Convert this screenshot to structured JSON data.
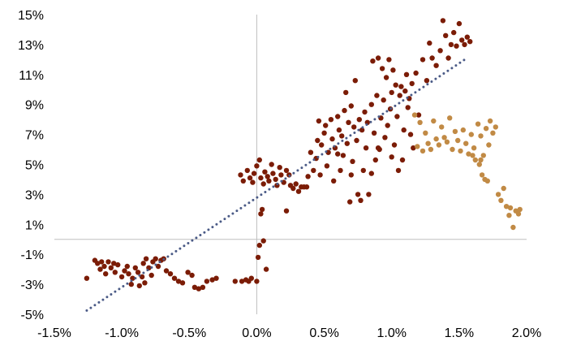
{
  "chart_data": {
    "type": "scatter",
    "title": "",
    "xlabel": "",
    "ylabel": "",
    "xlim": [
      -1.5,
      2.0
    ],
    "ylim": [
      -5,
      15
    ],
    "grid": false,
    "x_ticks": [
      -1.5,
      -1.0,
      -0.5,
      0.0,
      0.5,
      1.0,
      1.5,
      2.0
    ],
    "x_tick_labels": [
      "-1.5%",
      "-1.0%",
      "-0.5%",
      "0.0%",
      "0.5%",
      "1.0%",
      "1.5%",
      "2.0%"
    ],
    "y_ticks": [
      15,
      13,
      11,
      9,
      7,
      5,
      3,
      1,
      -1,
      -3,
      -5
    ],
    "y_tick_labels": [
      "15%",
      "13%",
      "11%",
      "9%",
      "7%",
      "5%",
      "3%",
      "1%",
      "-1%",
      "-3%",
      "-5%"
    ],
    "colors": {
      "primary": "#7b1c06",
      "highlight": "#c18a45",
      "trend": "#4a5a86",
      "axis": "#bfbfbf"
    },
    "series": [
      {
        "color": "#7b1c06",
        "points": [
          [
            -1.26,
            -2.6
          ],
          [
            -1.2,
            -1.4
          ],
          [
            -1.18,
            -1.6
          ],
          [
            -1.16,
            -2.0
          ],
          [
            -1.15,
            -1.5
          ],
          [
            -1.13,
            -1.8
          ],
          [
            -1.12,
            -2.3
          ],
          [
            -1.1,
            -1.5
          ],
          [
            -1.08,
            -1.9
          ],
          [
            -1.06,
            -1.6
          ],
          [
            -1.05,
            -2.2
          ],
          [
            -1.03,
            -1.7
          ],
          [
            -1.0,
            -2.5
          ],
          [
            -0.98,
            -2.1
          ],
          [
            -0.96,
            -1.8
          ],
          [
            -0.95,
            -2.3
          ],
          [
            -0.93,
            -3.0
          ],
          [
            -0.92,
            -2.6
          ],
          [
            -0.9,
            -1.9
          ],
          [
            -0.88,
            -2.2
          ],
          [
            -0.87,
            -3.1
          ],
          [
            -0.85,
            -2.5
          ],
          [
            -0.84,
            -1.6
          ],
          [
            -0.83,
            -2.9
          ],
          [
            -0.82,
            -1.3
          ],
          [
            -0.8,
            -1.9
          ],
          [
            -0.78,
            -2.4
          ],
          [
            -0.77,
            -1.5
          ],
          [
            -0.75,
            -1.3
          ],
          [
            -0.73,
            -1.8
          ],
          [
            -0.71,
            -1.4
          ],
          [
            -0.69,
            -1.3
          ],
          [
            -0.67,
            -2.1
          ],
          [
            -0.64,
            -2.3
          ],
          [
            -0.61,
            -2.6
          ],
          [
            -0.58,
            -2.8
          ],
          [
            -0.55,
            -2.9
          ],
          [
            -0.51,
            -2.2
          ],
          [
            -0.48,
            -2.4
          ],
          [
            -0.46,
            -3.2
          ],
          [
            -0.43,
            -3.3
          ],
          [
            -0.4,
            -3.2
          ],
          [
            -0.37,
            -2.8
          ],
          [
            -0.33,
            -2.7
          ],
          [
            -0.3,
            -2.6
          ],
          [
            -0.16,
            -2.8
          ],
          [
            -0.11,
            -2.8
          ],
          [
            -0.08,
            -2.7
          ],
          [
            -0.06,
            -2.8
          ],
          [
            -0.04,
            -2.6
          ],
          [
            0.0,
            -2.8
          ],
          [
            0.01,
            -1.2
          ],
          [
            0.02,
            -0.4
          ],
          [
            0.03,
            1.7
          ],
          [
            0.04,
            2.0
          ],
          [
            0.05,
            -0.1
          ],
          [
            0.07,
            -2.0
          ],
          [
            -0.12,
            4.3
          ],
          [
            -0.1,
            3.9
          ],
          [
            -0.07,
            4.6
          ],
          [
            -0.05,
            4.1
          ],
          [
            -0.03,
            3.8
          ],
          [
            -0.02,
            4.4
          ],
          [
            0.0,
            4.9
          ],
          [
            0.02,
            5.3
          ],
          [
            0.03,
            4.1
          ],
          [
            0.05,
            3.7
          ],
          [
            0.06,
            4.5
          ],
          [
            0.08,
            4.2
          ],
          [
            0.09,
            3.9
          ],
          [
            0.11,
            5.0
          ],
          [
            0.12,
            4.4
          ],
          [
            0.14,
            4.0
          ],
          [
            0.15,
            3.6
          ],
          [
            0.17,
            4.8
          ],
          [
            0.18,
            4.3
          ],
          [
            0.2,
            3.8
          ],
          [
            0.22,
            4.6
          ],
          [
            0.24,
            4.3
          ],
          [
            0.25,
            3.6
          ],
          [
            0.27,
            3.4
          ],
          [
            0.29,
            3.7
          ],
          [
            0.31,
            3.2
          ],
          [
            0.33,
            3.5
          ],
          [
            0.35,
            3.5
          ],
          [
            0.37,
            3.5
          ],
          [
            0.22,
            1.9
          ],
          [
            0.38,
            4.2
          ],
          [
            0.4,
            5.8
          ],
          [
            0.42,
            4.6
          ],
          [
            0.44,
            5.4
          ],
          [
            0.45,
            6.6
          ],
          [
            0.46,
            7.9
          ],
          [
            0.47,
            4.3
          ],
          [
            0.48,
            6.3
          ],
          [
            0.5,
            7.1
          ],
          [
            0.51,
            7.6
          ],
          [
            0.52,
            4.9
          ],
          [
            0.53,
            5.8
          ],
          [
            0.55,
            8.0
          ],
          [
            0.56,
            6.7
          ],
          [
            0.57,
            3.9
          ],
          [
            0.58,
            6.1
          ],
          [
            0.6,
            8.2
          ],
          [
            0.61,
            7.3
          ],
          [
            0.62,
            4.6
          ],
          [
            0.63,
            6.9
          ],
          [
            0.64,
            5.6
          ],
          [
            0.65,
            8.6
          ],
          [
            0.66,
            9.8
          ],
          [
            0.67,
            6.4
          ],
          [
            0.68,
            7.8
          ],
          [
            0.69,
            2.5
          ],
          [
            0.7,
            8.9
          ],
          [
            0.71,
            5.2
          ],
          [
            0.72,
            7.5
          ],
          [
            0.73,
            10.6
          ],
          [
            0.74,
            6.6
          ],
          [
            0.75,
            3.0
          ],
          [
            0.76,
            8.0
          ],
          [
            0.77,
            2.6
          ],
          [
            0.78,
            7.3
          ],
          [
            0.79,
            4.6
          ],
          [
            0.8,
            8.5
          ],
          [
            0.81,
            6.1
          ],
          [
            0.82,
            7.8
          ],
          [
            0.83,
            3.0
          ],
          [
            0.85,
            9.0
          ],
          [
            0.86,
            11.9
          ],
          [
            0.87,
            7.1
          ],
          [
            0.88,
            5.3
          ],
          [
            0.89,
            9.6
          ],
          [
            0.9,
            12.1
          ],
          [
            0.91,
            6.0
          ],
          [
            0.92,
            8.1
          ],
          [
            0.93,
            11.4
          ],
          [
            0.94,
            9.3
          ],
          [
            0.95,
            6.8
          ],
          [
            0.96,
            10.8
          ],
          [
            0.97,
            7.6
          ],
          [
            0.98,
            12.0
          ],
          [
            0.99,
            8.7
          ],
          [
            1.0,
            9.8
          ],
          [
            1.01,
            11.3
          ],
          [
            1.02,
            6.3
          ],
          [
            1.03,
            10.3
          ],
          [
            1.04,
            8.2
          ],
          [
            1.05,
            4.6
          ],
          [
            1.06,
            9.6
          ],
          [
            1.07,
            10.2
          ],
          [
            1.08,
            5.3
          ],
          [
            1.09,
            7.3
          ],
          [
            1.1,
            9.9
          ],
          [
            1.11,
            11.0
          ],
          [
            1.12,
            8.8
          ],
          [
            1.13,
            9.4
          ],
          [
            1.14,
            7.0
          ],
          [
            1.15,
            10.4
          ],
          [
            1.16,
            6.1
          ],
          [
            1.18,
            11.1
          ],
          [
            1.2,
            8.3
          ],
          [
            1.23,
            12.0
          ],
          [
            1.26,
            10.6
          ],
          [
            1.28,
            13.1
          ],
          [
            1.3,
            12.1
          ],
          [
            1.33,
            11.6
          ],
          [
            1.36,
            12.6
          ],
          [
            1.38,
            14.6
          ],
          [
            1.4,
            13.6
          ],
          [
            1.42,
            12.1
          ],
          [
            1.44,
            13.0
          ],
          [
            1.46,
            13.8
          ],
          [
            1.48,
            12.9
          ],
          [
            1.5,
            14.4
          ],
          [
            1.52,
            13.3
          ],
          [
            1.54,
            13.0
          ],
          [
            1.56,
            13.5
          ],
          [
            1.58,
            13.2
          ],
          [
            0.7,
            4.3
          ],
          [
            0.9,
            6.1
          ],
          [
            1.0,
            5.5
          ],
          [
            0.6,
            5.7
          ],
          [
            0.85,
            4.4
          ]
        ]
      },
      {
        "color": "#c18a45",
        "points": [
          [
            1.17,
            8.3
          ],
          [
            1.19,
            6.2
          ],
          [
            1.21,
            7.8
          ],
          [
            1.23,
            5.9
          ],
          [
            1.25,
            7.1
          ],
          [
            1.27,
            6.4
          ],
          [
            1.29,
            6.0
          ],
          [
            1.31,
            7.9
          ],
          [
            1.33,
            6.7
          ],
          [
            1.35,
            6.3
          ],
          [
            1.37,
            7.5
          ],
          [
            1.39,
            6.8
          ],
          [
            1.41,
            6.5
          ],
          [
            1.43,
            8.1
          ],
          [
            1.45,
            6.0
          ],
          [
            1.47,
            7.2
          ],
          [
            1.49,
            6.6
          ],
          [
            1.51,
            5.9
          ],
          [
            1.53,
            7.3
          ],
          [
            1.55,
            6.4
          ],
          [
            1.57,
            5.7
          ],
          [
            1.59,
            7.0
          ],
          [
            1.61,
            6.1
          ],
          [
            1.62,
            5.3
          ],
          [
            1.64,
            7.7
          ],
          [
            1.65,
            5.0
          ],
          [
            1.66,
            6.9
          ],
          [
            1.67,
            4.3
          ],
          [
            1.68,
            5.6
          ],
          [
            1.69,
            4.0
          ],
          [
            1.7,
            7.4
          ],
          [
            1.71,
            3.9
          ],
          [
            1.72,
            6.3
          ],
          [
            1.73,
            7.9
          ],
          [
            1.75,
            7.1
          ],
          [
            1.77,
            7.5
          ],
          [
            1.79,
            3.0
          ],
          [
            1.81,
            2.6
          ],
          [
            1.83,
            3.4
          ],
          [
            1.85,
            2.2
          ],
          [
            1.87,
            1.6
          ],
          [
            1.88,
            2.1
          ],
          [
            1.9,
            0.8
          ],
          [
            1.92,
            1.9
          ],
          [
            1.94,
            1.7
          ],
          [
            1.95,
            2.0
          ],
          [
            1.66,
            5.3
          ],
          [
            1.6,
            5.6
          ]
        ]
      }
    ],
    "trendline": {
      "style": "dotted",
      "x": [
        -1.26,
        1.55
      ],
      "y": [
        -4.75,
        12.05
      ]
    }
  }
}
